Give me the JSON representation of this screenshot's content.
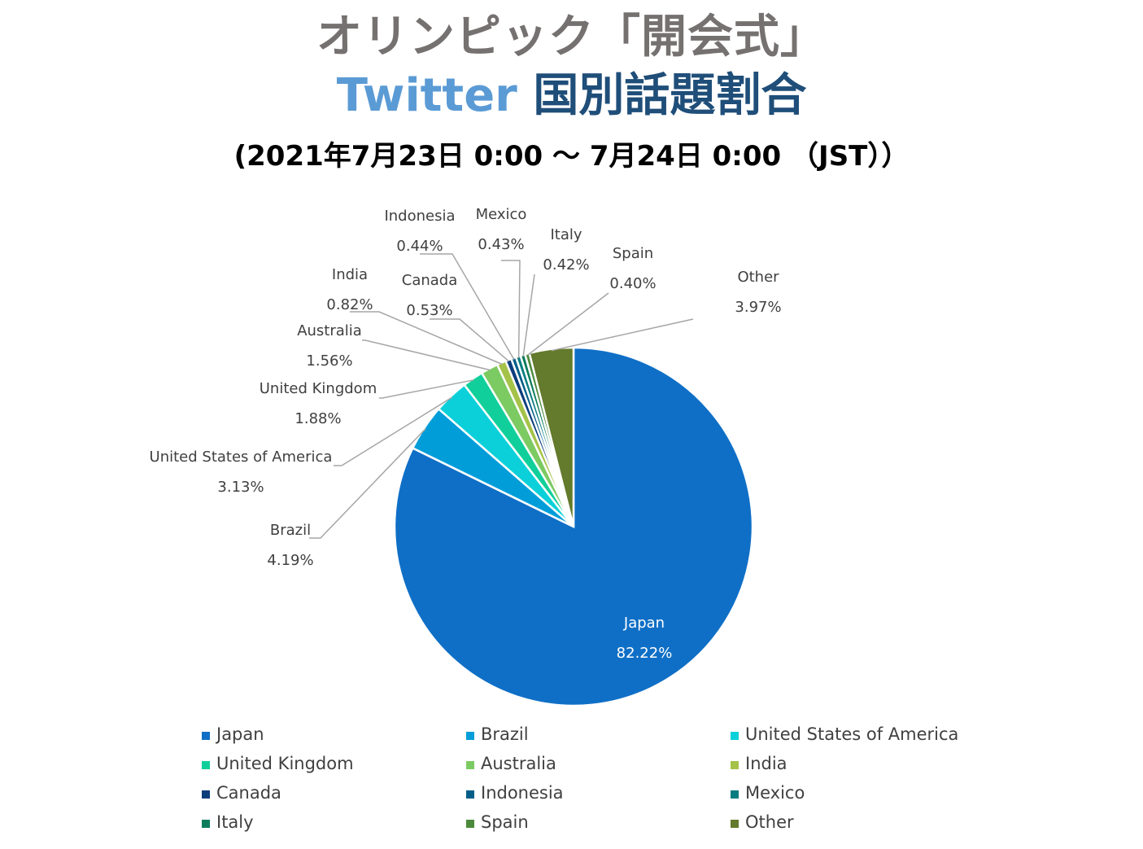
{
  "title": {
    "line1": "オリンピック「開会式」",
    "line2_brand": "Twitter",
    "line2_rest": "国別話題割合",
    "subtitle": "(2021年7月23日 0:00 ～ 7月24日 0:00 （JST））"
  },
  "chart_data": {
    "type": "pie",
    "start": "clockwise from 12 o'clock",
    "slices": [
      {
        "label": "Japan",
        "value": 82.22,
        "display": "82.22%",
        "color": "#0f6fc6"
      },
      {
        "label": "Brazil",
        "value": 4.19,
        "display": "4.19%",
        "color": "#009dd9"
      },
      {
        "label": "United States of America",
        "value": 3.13,
        "display": "3.13%",
        "color": "#0bd0d9"
      },
      {
        "label": "United Kingdom",
        "value": 1.88,
        "display": "1.88%",
        "color": "#10cf9b"
      },
      {
        "label": "Australia",
        "value": 1.56,
        "display": "1.56%",
        "color": "#7cca62"
      },
      {
        "label": "India",
        "value": 0.82,
        "display": "0.82%",
        "color": "#a5c249"
      },
      {
        "label": "Canada",
        "value": 0.53,
        "display": "0.53%",
        "color": "#0b3d7c"
      },
      {
        "label": "Indonesia",
        "value": 0.44,
        "display": "0.44%",
        "color": "#005e88"
      },
      {
        "label": "Mexico",
        "value": 0.43,
        "display": "0.43%",
        "color": "#077d80"
      },
      {
        "label": "Italy",
        "value": 0.42,
        "display": "0.42%",
        "color": "#0a7c5c"
      },
      {
        "label": "Spain",
        "value": 0.4,
        "display": "0.40%",
        "color": "#4b8a3b"
      },
      {
        "label": "Other",
        "value": 3.97,
        "display": "3.97%",
        "color": "#647a2c"
      }
    ],
    "legend": {
      "position": "bottom",
      "columns": 3
    }
  }
}
